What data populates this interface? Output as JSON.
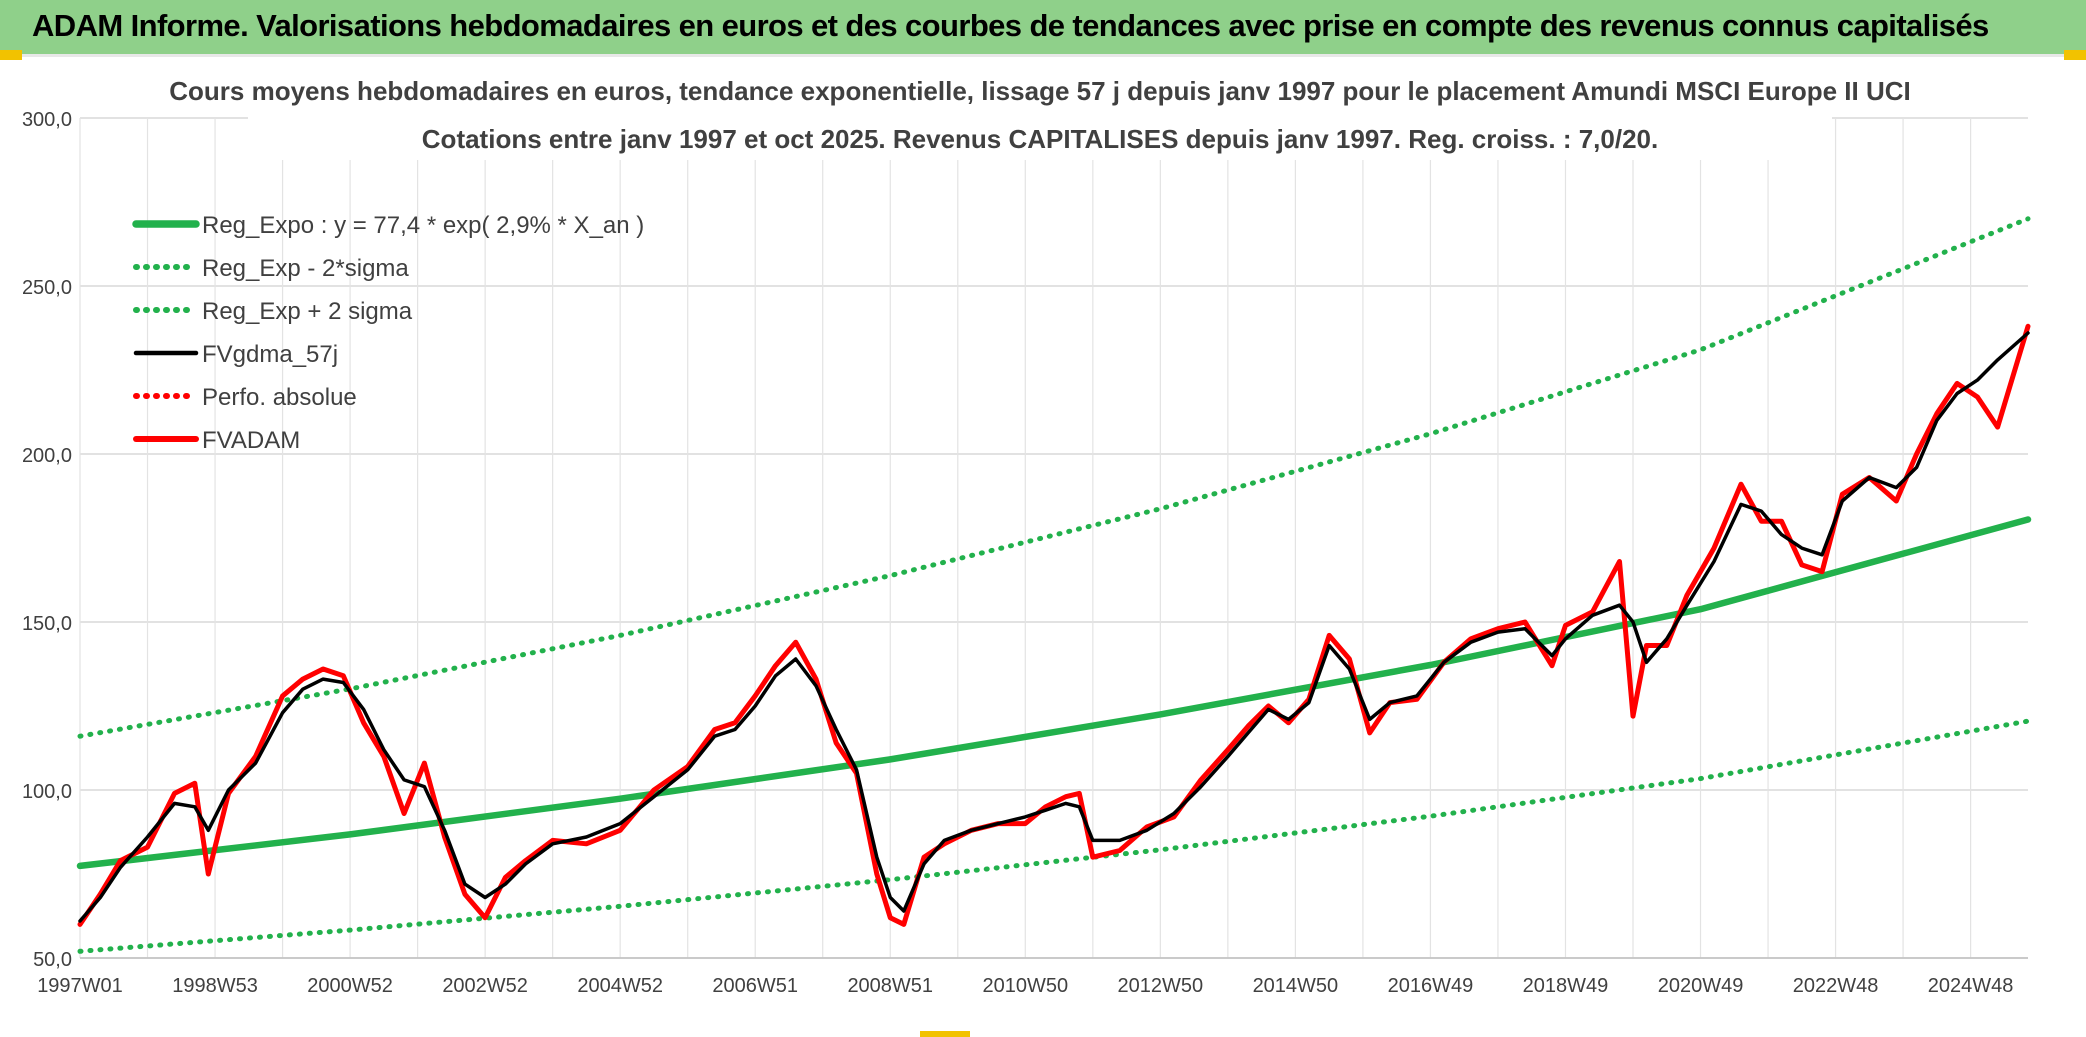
{
  "header": {
    "title": "ADAM Informe. Valorisations hebdomadaires en euros et des courbes de tendances avec prise en compte des revenus connus capitalisés"
  },
  "colors": {
    "banner": "#8fd08a",
    "accent": "#f2c200",
    "trend": "#22b14c",
    "smooth": "#000000",
    "price": "#ff0000"
  },
  "chart_data": {
    "type": "line",
    "title": "Cours moyens hebdomadaires en euros, tendance exponentielle, lissage 57 j depuis janv 1997 pour le placement Amundi MSCI Europe II UCI",
    "subtitle": "Cotations entre janv 1997 et oct 2025. Revenus CAPITALISES depuis janv 1997. Reg. croiss. : 7,0/20.",
    "xlabel": "",
    "ylabel": "",
    "ylim": [
      50,
      300
    ],
    "yticks": [
      "50,0",
      "100,0",
      "150,0",
      "200,0",
      "250,0",
      "300,0"
    ],
    "xlim": [
      1997.0,
      2025.85
    ],
    "xticks": [
      {
        "x": 1997.0,
        "label": "1997W01"
      },
      {
        "x": 1999.0,
        "label": "1998W53"
      },
      {
        "x": 2001.0,
        "label": "2000W52"
      },
      {
        "x": 2003.0,
        "label": "2002W52"
      },
      {
        "x": 2005.0,
        "label": "2004W52"
      },
      {
        "x": 2007.0,
        "label": "2006W51"
      },
      {
        "x": 2009.0,
        "label": "2008W51"
      },
      {
        "x": 2011.0,
        "label": "2010W50"
      },
      {
        "x": 2013.0,
        "label": "2012W50"
      },
      {
        "x": 2015.0,
        "label": "2014W50"
      },
      {
        "x": 2017.0,
        "label": "2016W49"
      },
      {
        "x": 2019.0,
        "label": "2018W49"
      },
      {
        "x": 2021.0,
        "label": "2020W49"
      },
      {
        "x": 2023.0,
        "label": "2022W48"
      },
      {
        "x": 2025.0,
        "label": "2024W48"
      }
    ],
    "grid": true,
    "legend_position": "top-left",
    "series": [
      {
        "name": "Reg_Expo : y = 77,4 * exp( 2,9% *  X_an )",
        "style": "solid-thick",
        "color": "#22b14c",
        "x": [
          1997.0,
          2001.0,
          2005.0,
          2009.0,
          2013.0,
          2017.0,
          2021.0,
          2025.85
        ],
        "y": [
          77.4,
          86.8,
          97.4,
          109.1,
          122.5,
          137.2,
          153.8,
          180.5
        ]
      },
      {
        "name": "Reg_Exp - 2*sigma",
        "style": "dotted",
        "color": "#22b14c",
        "x": [
          1997.0,
          2001.0,
          2005.0,
          2009.0,
          2013.0,
          2017.0,
          2021.0,
          2025.85
        ],
        "y": [
          52.0,
          58.3,
          65.4,
          73.3,
          82.2,
          92.2,
          103.4,
          120.5
        ]
      },
      {
        "name": "Reg_Exp + 2 sigma",
        "style": "dotted",
        "color": "#22b14c",
        "x": [
          1997.0,
          2001.0,
          2005.0,
          2009.0,
          2013.0,
          2017.0,
          2021.0,
          2025.85
        ],
        "y": [
          116.0,
          130.1,
          146.0,
          163.8,
          183.7,
          206.0,
          231.0,
          270.0
        ]
      },
      {
        "name": "FVgdma_57j",
        "style": "solid",
        "color": "#000000",
        "x": [
          1997.0,
          1997.3,
          1997.6,
          1998.0,
          1998.4,
          1998.7,
          1998.9,
          1999.2,
          1999.6,
          2000.0,
          2000.3,
          2000.6,
          2000.9,
          2001.2,
          2001.5,
          2001.8,
          2002.1,
          2002.4,
          2002.7,
          2003.0,
          2003.3,
          2003.6,
          2004.0,
          2004.5,
          2005.0,
          2005.5,
          2006.0,
          2006.4,
          2006.7,
          2007.0,
          2007.3,
          2007.6,
          2007.9,
          2008.2,
          2008.5,
          2008.8,
          2009.0,
          2009.2,
          2009.5,
          2009.8,
          2010.2,
          2010.6,
          2011.0,
          2011.3,
          2011.6,
          2011.8,
          2012.0,
          2012.4,
          2012.8,
          2013.2,
          2013.6,
          2014.0,
          2014.3,
          2014.6,
          2014.9,
          2015.2,
          2015.5,
          2015.8,
          2016.1,
          2016.4,
          2016.8,
          2017.2,
          2017.6,
          2018.0,
          2018.4,
          2018.8,
          2019.0,
          2019.4,
          2019.8,
          2020.0,
          2020.2,
          2020.5,
          2020.8,
          2021.2,
          2021.6,
          2021.9,
          2022.2,
          2022.5,
          2022.8,
          2023.1,
          2023.5,
          2023.9,
          2024.2,
          2024.5,
          2024.8,
          2025.1,
          2025.4,
          2025.85
        ],
        "y": [
          61,
          68,
          77,
          86,
          96,
          95,
          88,
          100,
          108,
          123,
          130,
          133,
          132,
          124,
          112,
          103,
          101,
          88,
          72,
          68,
          72,
          78,
          84,
          86,
          90,
          98,
          106,
          116,
          118,
          125,
          134,
          139,
          131,
          118,
          106,
          80,
          68,
          64,
          78,
          85,
          88,
          90,
          92,
          94,
          96,
          95,
          85,
          85,
          88,
          93,
          101,
          110,
          117,
          124,
          121,
          126,
          143,
          136,
          121,
          126,
          128,
          138,
          144,
          147,
          148,
          140,
          145,
          152,
          155,
          150,
          138,
          145,
          155,
          168,
          185,
          183,
          176,
          172,
          170,
          186,
          193,
          190,
          196,
          210,
          218,
          222,
          228,
          236
        ]
      },
      {
        "name": "Perfo. absolue",
        "style": "dotted",
        "color": "#ff0000",
        "x": [],
        "y": []
      },
      {
        "name": "FVADAM",
        "style": "solid-thick",
        "color": "#ff0000",
        "x": [
          1997.0,
          1997.3,
          1997.6,
          1998.0,
          1998.4,
          1998.7,
          1998.9,
          1999.2,
          1999.6,
          2000.0,
          2000.3,
          2000.6,
          2000.9,
          2001.2,
          2001.5,
          2001.8,
          2002.1,
          2002.4,
          2002.7,
          2003.0,
          2003.3,
          2003.6,
          2004.0,
          2004.5,
          2005.0,
          2005.5,
          2006.0,
          2006.4,
          2006.7,
          2007.0,
          2007.3,
          2007.6,
          2007.9,
          2008.2,
          2008.5,
          2008.8,
          2009.0,
          2009.2,
          2009.5,
          2009.8,
          2010.2,
          2010.6,
          2011.0,
          2011.3,
          2011.6,
          2011.8,
          2012.0,
          2012.4,
          2012.8,
          2013.2,
          2013.6,
          2014.0,
          2014.3,
          2014.6,
          2014.9,
          2015.2,
          2015.5,
          2015.8,
          2016.1,
          2016.4,
          2016.8,
          2017.2,
          2017.6,
          2018.0,
          2018.4,
          2018.8,
          2019.0,
          2019.4,
          2019.8,
          2020.0,
          2020.2,
          2020.5,
          2020.8,
          2021.2,
          2021.6,
          2021.9,
          2022.2,
          2022.5,
          2022.8,
          2023.1,
          2023.5,
          2023.9,
          2024.2,
          2024.5,
          2024.8,
          2025.1,
          2025.4,
          2025.85
        ],
        "y": [
          60,
          69,
          79,
          83,
          99,
          102,
          75,
          99,
          110,
          128,
          133,
          136,
          134,
          120,
          110,
          93,
          108,
          86,
          69,
          62,
          74,
          79,
          85,
          84,
          88,
          100,
          107,
          118,
          120,
          128,
          137,
          144,
          133,
          114,
          105,
          75,
          62,
          60,
          80,
          84,
          88,
          90,
          90,
          95,
          98,
          99,
          80,
          82,
          89,
          92,
          103,
          112,
          119,
          125,
          120,
          127,
          146,
          139,
          117,
          126,
          127,
          138,
          145,
          148,
          150,
          137,
          149,
          153,
          168,
          122,
          143,
          143,
          158,
          172,
          191,
          180,
          180,
          167,
          165,
          188,
          193,
          186,
          200,
          212,
          221,
          217,
          208,
          238
        ]
      }
    ]
  }
}
